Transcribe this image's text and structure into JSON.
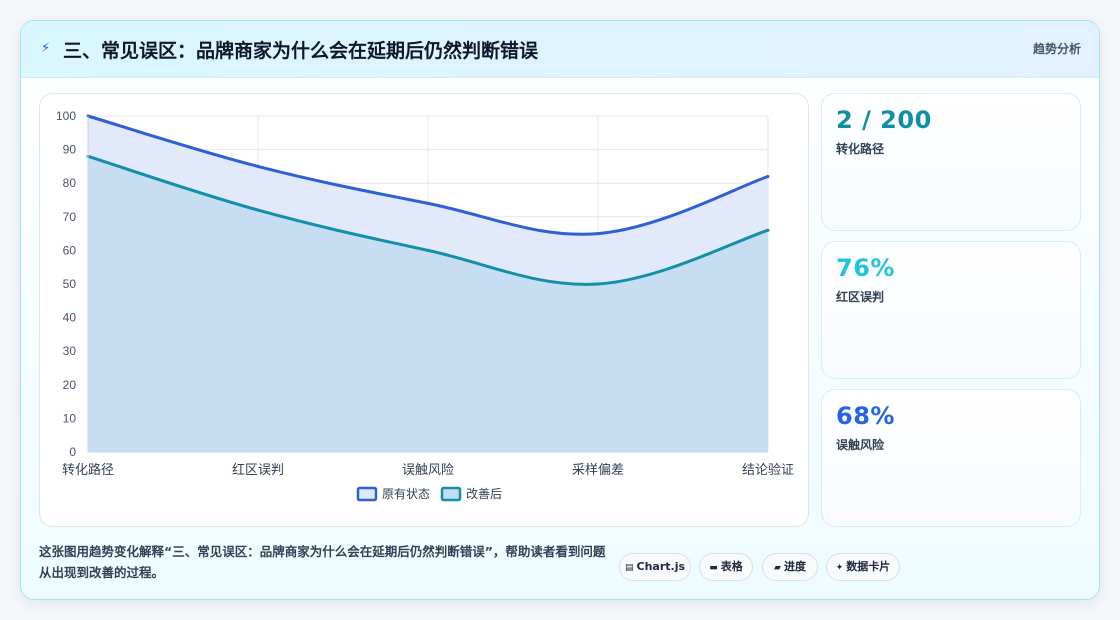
{
  "header": {
    "icon": "lightning-icon",
    "title": "三、常见误区：品牌商家为什么会在延期后仍然判断错误",
    "tag": "趋势分析"
  },
  "stats": [
    {
      "value": "2 / 200",
      "label": "转化路径",
      "color": "#0e8fa6"
    },
    {
      "value": "76%",
      "label": "红区误判",
      "color": "#22c4dd"
    },
    {
      "value": "68%",
      "label": "误触风险",
      "color": "#2563eb"
    }
  ],
  "footer": {
    "description": "这张图用趋势变化解释“三、常见误区：品牌商家为什么会在延期后仍然判断错误”，帮助读者看到问题从出现到改善的过程。"
  },
  "chips": [
    {
      "icon": "▤",
      "label": "Chart.js"
    },
    {
      "icon": "▬",
      "label": "表格"
    },
    {
      "icon": "▰",
      "label": "进度"
    },
    {
      "icon": "✦",
      "label": "数据卡片"
    }
  ],
  "chart_data": {
    "type": "area",
    "categories": [
      "转化路径",
      "红区误判",
      "误触风险",
      "采样偏差",
      "结论验证"
    ],
    "series": [
      {
        "name": "原有状态",
        "values": [
          100,
          85,
          74,
          65,
          82
        ],
        "color": "#2f5fd6",
        "fill": "#e0e8fb"
      },
      {
        "name": "改善后",
        "values": [
          88,
          72,
          60,
          50,
          66
        ],
        "color": "#138fa8",
        "fill": "#c4dcf1"
      }
    ],
    "ylim": [
      0,
      100
    ],
    "yticks": [
      0,
      10,
      20,
      30,
      40,
      50,
      60,
      70,
      80,
      90,
      100
    ],
    "grid": true,
    "legend": "bottom"
  }
}
